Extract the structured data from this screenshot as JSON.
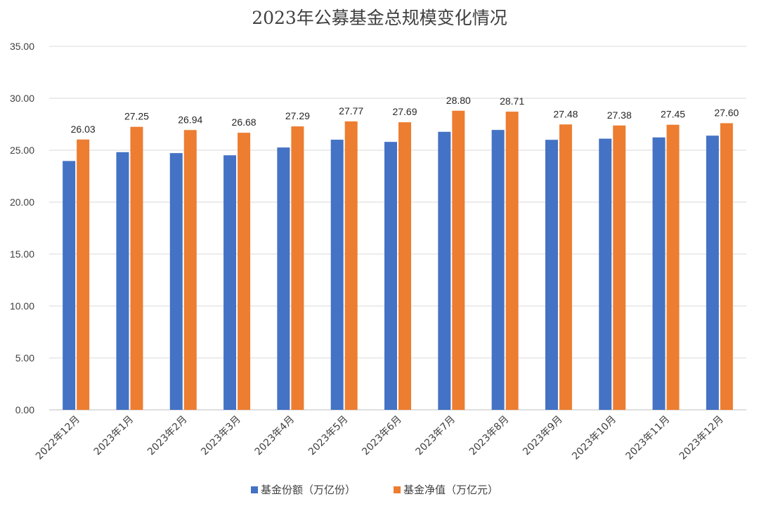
{
  "chart_data": {
    "type": "bar",
    "title": "2023年公募基金总规模变化情况",
    "categories": [
      "2022年12月",
      "2023年1月",
      "2023年2月",
      "2023年3月",
      "2023年4月",
      "2023年5月",
      "2023年6月",
      "2023年7月",
      "2023年8月",
      "2023年9月",
      "2023年10月",
      "2023年11月",
      "2023年12月"
    ],
    "series": [
      {
        "name": "基金份额（万亿份）",
        "color": "#4472c4",
        "values": [
          23.96,
          24.81,
          24.72,
          24.51,
          25.26,
          26.01,
          25.8,
          26.77,
          26.95,
          26.0,
          26.11,
          26.23,
          26.4
        ],
        "show_labels": false
      },
      {
        "name": "基金净值（万亿元）",
        "color": "#ed7d31",
        "values": [
          26.03,
          27.25,
          26.94,
          26.68,
          27.29,
          27.77,
          27.69,
          28.8,
          28.71,
          27.48,
          27.38,
          27.45,
          27.6
        ],
        "labels": [
          "26.03",
          "27.25",
          "26.94",
          "26.68",
          "27.29",
          "27.77",
          "27.69",
          "28.80",
          "28.71",
          "27.48",
          "27.38",
          "27.45",
          "27.60"
        ],
        "show_labels": true
      }
    ],
    "ylim": [
      0,
      35
    ],
    "yticks": [
      "0.00",
      "5.00",
      "10.00",
      "15.00",
      "20.00",
      "25.00",
      "30.00",
      "35.00"
    ],
    "grid": true,
    "legend_position": "bottom",
    "xlabel": "",
    "ylabel": ""
  }
}
